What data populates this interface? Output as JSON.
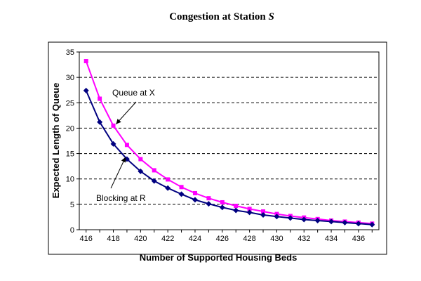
{
  "chart_data": {
    "type": "line",
    "title": "Congestion at Station",
    "title_var": "S",
    "xlabel": "Number of Supported Housing Beds",
    "ylabel": "Expected Length of Queue",
    "xlim": [
      415.5,
      437.5
    ],
    "ylim": [
      0,
      35
    ],
    "x_ticks": [
      416,
      418,
      420,
      422,
      424,
      426,
      428,
      430,
      432,
      434,
      436
    ],
    "y_ticks": [
      0,
      5,
      10,
      15,
      20,
      25,
      30,
      35
    ],
    "grid": "horizontal-dashed",
    "x": [
      416,
      417,
      418,
      419,
      420,
      421,
      422,
      423,
      424,
      425,
      426,
      427,
      428,
      429,
      430,
      431,
      432,
      433,
      434,
      435,
      436,
      437
    ],
    "series": [
      {
        "key": "queue",
        "values": [
          33.2,
          25.8,
          20.5,
          16.7,
          13.9,
          11.7,
          9.9,
          8.4,
          7.2,
          6.2,
          5.4,
          4.7,
          4.1,
          3.6,
          3.1,
          2.7,
          2.4,
          2.1,
          1.8,
          1.6,
          1.4,
          1.2
        ],
        "color": "#ff00ff",
        "marker": "square"
      },
      {
        "key": "blocking",
        "values": [
          27.4,
          21.2,
          16.9,
          13.9,
          11.5,
          9.6,
          8.2,
          7.0,
          5.9,
          5.1,
          4.4,
          3.8,
          3.4,
          2.9,
          2.6,
          2.3,
          2.0,
          1.8,
          1.6,
          1.4,
          1.2,
          1.0
        ],
        "color": "#000080",
        "marker": "diamond"
      }
    ],
    "annotations": [
      {
        "text": "Queue at X",
        "arrow_to": [
          418.2,
          20.8
        ]
      },
      {
        "text": "Blocking at R",
        "arrow_to": [
          418.9,
          14.3
        ]
      }
    ]
  }
}
